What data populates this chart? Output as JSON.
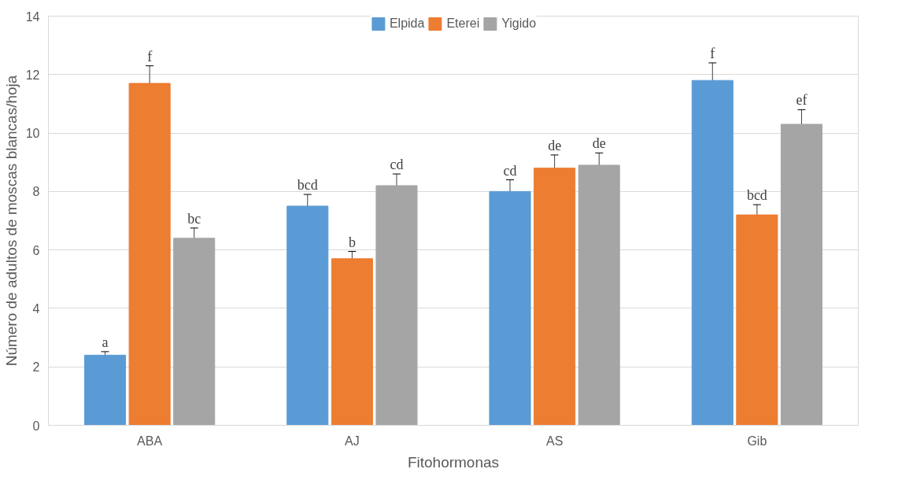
{
  "chart_data": {
    "type": "bar",
    "xlabel": "Fitohormonas",
    "ylabel": "Número de adultos de moscas blancas/hoja",
    "categories": [
      "ABA",
      "AJ",
      "AS",
      "Gib"
    ],
    "series": [
      {
        "name": "Elpida",
        "color": "#5b9bd5",
        "values": [
          2.4,
          7.5,
          8.0,
          11.8
        ],
        "errors": [
          0.12,
          0.4,
          0.4,
          0.6
        ],
        "value_labels": [
          "a",
          "bcd",
          "cd",
          "f"
        ]
      },
      {
        "name": "Eterei",
        "color": "#ed7d31",
        "values": [
          11.7,
          5.7,
          8.8,
          7.2
        ],
        "errors": [
          0.6,
          0.25,
          0.45,
          0.35
        ],
        "value_labels": [
          "f",
          "b",
          "de",
          "bcd"
        ]
      },
      {
        "name": "Yigido",
        "color": "#a5a5a5",
        "values": [
          6.4,
          8.2,
          8.9,
          10.3
        ],
        "errors": [
          0.35,
          0.4,
          0.42,
          0.5
        ],
        "value_labels": [
          "bc",
          "cd",
          "de",
          "ef"
        ]
      }
    ],
    "ylim": [
      0,
      14
    ],
    "yticks": [
      0,
      2,
      4,
      6,
      8,
      10,
      12,
      14
    ],
    "grid": "y",
    "legend": "top"
  }
}
